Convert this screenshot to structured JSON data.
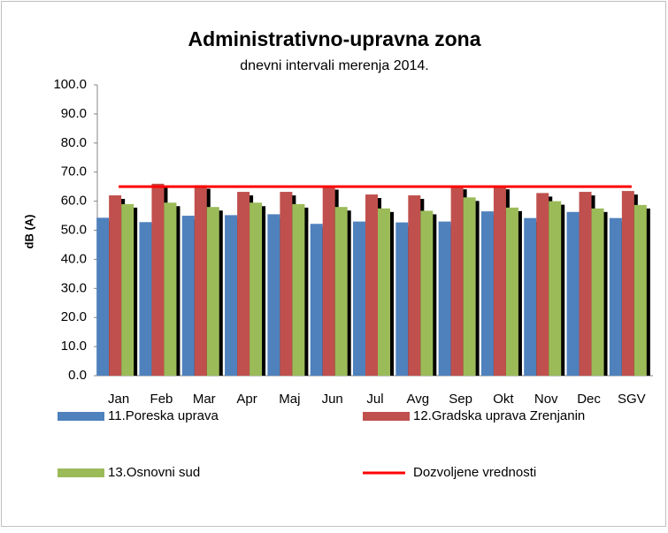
{
  "chart_data": {
    "type": "bar",
    "title": "Administrativno-upravna zona",
    "subtitle": "dnevni intervali merenja 2014.",
    "y_label": "dB (A)",
    "categories": [
      "Jan",
      "Feb",
      "Mar",
      "Apr",
      "Maj",
      "Jun",
      "Jul",
      "Avg",
      "Sep",
      "Okt",
      "Nov",
      "Dec",
      "SGV"
    ],
    "series": [
      {
        "name": "11.Poreska uprava",
        "color": "#4f81bd",
        "values": [
          54.3,
          52.8,
          55,
          55.2,
          55.5,
          52.2,
          53,
          52.7,
          53,
          56.5,
          54.2,
          56.3,
          54.2
        ]
      },
      {
        "name": "12.Gradska uprava Zrenjanin",
        "color": "#c0504d",
        "values": [
          62,
          66,
          65.5,
          63.2,
          63.2,
          65.2,
          62.3,
          62,
          65.3,
          65.3,
          62.8,
          63.2,
          63.5
        ]
      },
      {
        "name": "13.Osnovni sud",
        "color": "#9bbb59",
        "values": [
          59,
          59.5,
          58,
          59.5,
          59,
          58,
          57.5,
          56.7,
          61.3,
          57.8,
          60,
          57.5,
          58.7
        ]
      },
      {
        "name": "Dozvoljene vrednosti",
        "color": "#ff0000",
        "type": "line",
        "values": [
          65,
          65,
          65,
          65,
          65,
          65,
          65,
          65,
          65,
          65,
          65,
          65,
          65
        ]
      }
    ],
    "ylim": [
      0,
      100
    ],
    "yticks": [
      {
        "value": 0,
        "label": "0.0"
      },
      {
        "value": 10,
        "label": "10.0"
      },
      {
        "value": 20,
        "label": "20.0"
      },
      {
        "value": 30,
        "label": "30.0"
      },
      {
        "value": 40,
        "label": "40.0"
      },
      {
        "value": 50,
        "label": "50.0"
      },
      {
        "value": 60,
        "label": "60.0"
      },
      {
        "value": 70,
        "label": "70.0"
      },
      {
        "value": 80,
        "label": "80.0"
      },
      {
        "value": 90,
        "label": "90.0"
      },
      {
        "value": 100,
        "label": "100.0"
      }
    ],
    "grid": false
  }
}
